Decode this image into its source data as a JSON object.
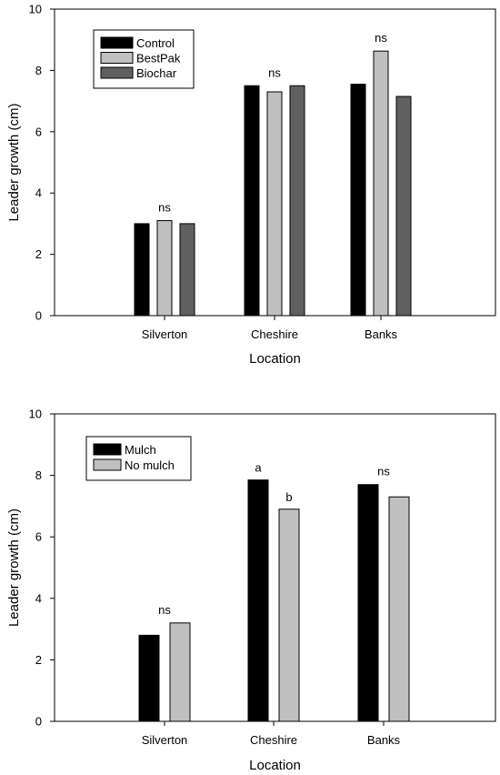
{
  "chart_data": [
    {
      "type": "bar",
      "categories": [
        "Silverton",
        "Cheshire",
        "Banks"
      ],
      "series": [
        {
          "name": "Control",
          "color": "#000000",
          "values": [
            3.0,
            7.5,
            7.55
          ]
        },
        {
          "name": "BestPak",
          "color": "#c0c0c0",
          "values": [
            3.1,
            7.3,
            8.63
          ]
        },
        {
          "name": "Biochar",
          "color": "#606060",
          "values": [
            3.0,
            7.5,
            7.15
          ]
        }
      ],
      "annotations": [
        "ns",
        "ns",
        "ns"
      ],
      "xlabel": "Location",
      "ylabel": "Leader growth (cm)",
      "ylim": [
        0,
        10
      ],
      "yticks": [
        0,
        2,
        4,
        6,
        8,
        10
      ],
      "grid": false,
      "legend_position": "top-left"
    },
    {
      "type": "bar",
      "categories": [
        "Silverton",
        "Cheshire",
        "Banks"
      ],
      "series": [
        {
          "name": "Mulch",
          "color": "#000000",
          "values": [
            2.8,
            7.85,
            7.7
          ]
        },
        {
          "name": "No mulch",
          "color": "#c0c0c0",
          "values": [
            3.2,
            6.9,
            7.3
          ]
        }
      ],
      "annotations": [
        {
          "category": "Silverton",
          "labels": [
            "ns"
          ]
        },
        {
          "category": "Cheshire",
          "labels": [
            "a",
            "b"
          ]
        },
        {
          "category": "Banks",
          "labels": [
            "ns"
          ]
        }
      ],
      "xlabel": "Location",
      "ylabel": "Leader growth (cm)",
      "ylim": [
        0,
        10
      ],
      "yticks": [
        0,
        2,
        4,
        6,
        8,
        10
      ],
      "grid": false,
      "legend_position": "top-left"
    }
  ]
}
